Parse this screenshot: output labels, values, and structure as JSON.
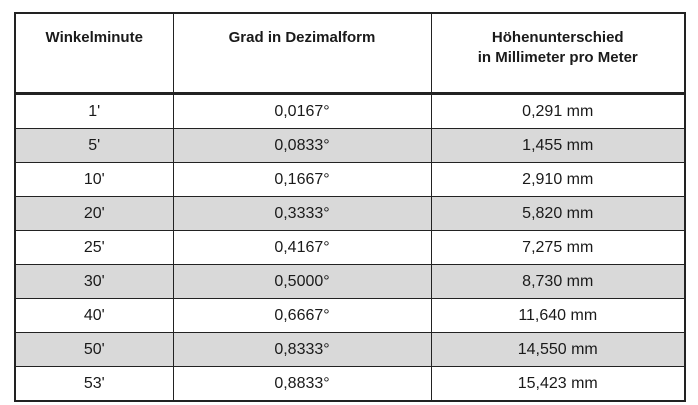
{
  "table": {
    "header": [
      [
        "Winkelminute"
      ],
      [
        "Grad in Dezimalform"
      ],
      [
        "Höhenunterschied",
        "in Millimeter pro Meter"
      ]
    ],
    "rows": [
      [
        "1'",
        "0,0167°",
        "0,291 mm"
      ],
      [
        "5'",
        "0,0833°",
        "1,455 mm"
      ],
      [
        "10'",
        "0,1667°",
        "2,910 mm"
      ],
      [
        "20'",
        "0,3333°",
        "5,820 mm"
      ],
      [
        "25'",
        "0,4167°",
        "7,275 mm"
      ],
      [
        "30'",
        "0,5000°",
        "8,730 mm"
      ],
      [
        "40'",
        "0,6667°",
        "11,640 mm"
      ],
      [
        "50'",
        "0,8333°",
        "14,550 mm"
      ],
      [
        "53'",
        "0,8833°",
        "15,423 mm"
      ]
    ]
  }
}
